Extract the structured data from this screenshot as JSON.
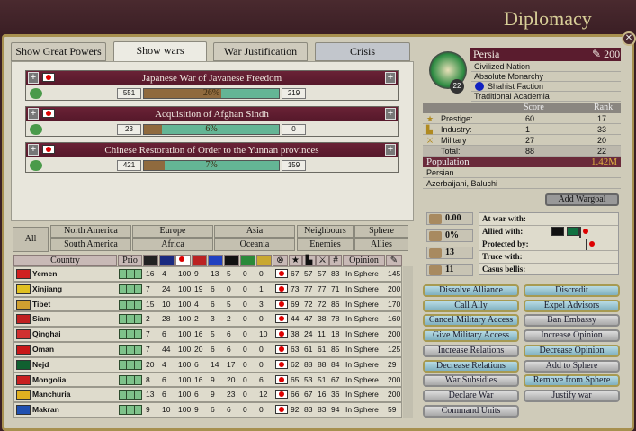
{
  "window": {
    "title": "Diplomacy",
    "close": "✕"
  },
  "tabs": [
    {
      "label": "Show Great Powers"
    },
    {
      "label": "Show wars",
      "active": true
    },
    {
      "label": "War Justification"
    },
    {
      "label": "Crisis"
    }
  ],
  "wars": [
    {
      "name": "Japanese War of Javanese Freedom",
      "attacker_score": "551",
      "defender_score": "219",
      "progress_label": "26%",
      "progress": 26
    },
    {
      "name": "Acquisition of Afghan Sindh",
      "attacker_score": "23",
      "defender_score": "0",
      "progress_label": "6%",
      "progress": 6
    },
    {
      "name": "Chinese Restoration of Order to the Yunnan provinces",
      "attacker_score": "421",
      "defender_score": "159",
      "progress_label": "7%",
      "progress": 7
    }
  ],
  "filters": {
    "all": "All",
    "regions": [
      "North America",
      "South America",
      "Europe",
      "Africa",
      "Asia",
      "Oceania"
    ],
    "groups": [
      "Neighbours",
      "Enemies",
      "Sphere",
      "Allies"
    ]
  },
  "table": {
    "headers": {
      "country": "Country",
      "prio": "Prio",
      "opinion": "Opinion"
    },
    "rows": [
      {
        "country": "Yemen",
        "flag": "#d02020",
        "vals": [
          "16",
          "4",
          "100",
          "9",
          "13",
          "5",
          "0",
          "0"
        ],
        "stats": [
          "67",
          "57",
          "57",
          "83"
        ],
        "opinion": "In Sphere",
        "influence": "145"
      },
      {
        "country": "Xinjiang",
        "flag": "#e0c020",
        "vals": [
          "7",
          "24",
          "100",
          "19",
          "6",
          "0",
          "0",
          "1"
        ],
        "stats": [
          "73",
          "77",
          "77",
          "71"
        ],
        "opinion": "In Sphere",
        "influence": "200"
      },
      {
        "country": "Tibet",
        "flag": "#d0a030",
        "vals": [
          "15",
          "10",
          "100",
          "4",
          "6",
          "5",
          "0",
          "3"
        ],
        "stats": [
          "69",
          "72",
          "72",
          "86"
        ],
        "opinion": "In Sphere",
        "influence": "170"
      },
      {
        "country": "Siam",
        "flag": "#c02020",
        "vals": [
          "2",
          "28",
          "100",
          "2",
          "3",
          "2",
          "0",
          "0"
        ],
        "stats": [
          "44",
          "47",
          "38",
          "78"
        ],
        "opinion": "In Sphere",
        "influence": "160"
      },
      {
        "country": "Qinghai",
        "flag": "#d03030",
        "vals": [
          "7",
          "6",
          "100",
          "16",
          "5",
          "6",
          "0",
          "10"
        ],
        "stats": [
          "38",
          "24",
          "11",
          "18"
        ],
        "opinion": "In Sphere",
        "influence": "200"
      },
      {
        "country": "Oman",
        "flag": "#c81818",
        "vals": [
          "7",
          "44",
          "100",
          "20",
          "6",
          "6",
          "0",
          "0"
        ],
        "stats": [
          "63",
          "61",
          "61",
          "85"
        ],
        "opinion": "In Sphere",
        "influence": "125"
      },
      {
        "country": "Nejd",
        "flag": "#106030",
        "vals": [
          "20",
          "4",
          "100",
          "6",
          "14",
          "17",
          "0",
          "0"
        ],
        "stats": [
          "62",
          "88",
          "88",
          "84"
        ],
        "opinion": "In Sphere",
        "influence": "29"
      },
      {
        "country": "Mongolia",
        "flag": "#c82020",
        "vals": [
          "8",
          "6",
          "100",
          "16",
          "9",
          "20",
          "0",
          "6"
        ],
        "stats": [
          "65",
          "53",
          "51",
          "67"
        ],
        "opinion": "In Sphere",
        "influence": "200"
      },
      {
        "country": "Manchuria",
        "flag": "#e0b020",
        "vals": [
          "13",
          "6",
          "100",
          "6",
          "9",
          "23",
          "0",
          "12"
        ],
        "stats": [
          "66",
          "67",
          "16",
          "36"
        ],
        "opinion": "In Sphere",
        "influence": "200"
      },
      {
        "country": "Makran",
        "flag": "#2050b0",
        "vals": [
          "9",
          "10",
          "100",
          "9",
          "6",
          "6",
          "0",
          "0"
        ],
        "stats": [
          "92",
          "83",
          "83",
          "94"
        ],
        "opinion": "In Sphere",
        "influence": "59"
      }
    ]
  },
  "nation": {
    "name": "Persia",
    "influence": "200",
    "rank_badge": "22",
    "type": "Civilized Nation",
    "government": "Absolute Monarchy",
    "party": "Shahist Faction",
    "party_color": "#1020c0",
    "tech_school": "Traditional Academia",
    "score_header": "Score",
    "rank_header": "Rank",
    "scores": [
      {
        "label": "Prestige:",
        "score": "60",
        "rank": "17"
      },
      {
        "label": "Industry:",
        "score": "1",
        "rank": "33"
      },
      {
        "label": "Military",
        "score": "27",
        "rank": "20"
      },
      {
        "label": "Total:",
        "score": "88",
        "rank": "22"
      }
    ],
    "population_label": "Population",
    "population": "1.42M",
    "primary_culture": "Persian",
    "accepted_cultures": "Azerbaijani, Baluchi"
  },
  "relations": {
    "add_wargoal": "Add Wargoal",
    "stats": [
      "0.00",
      "0%",
      "13",
      "11"
    ],
    "at_war_with": "At war with:",
    "allied_with": "Allied with:",
    "protected_by": "Protected by:",
    "truce_with": "Truce with:",
    "casus_bellis": "Casus bellis:"
  },
  "actions": [
    {
      "label": "Dissolve Alliance",
      "enabled": true
    },
    {
      "label": "Discredit",
      "enabled": true
    },
    {
      "label": "Call Ally",
      "enabled": true
    },
    {
      "label": "Expel Advisors",
      "enabled": true
    },
    {
      "label": "Cancel Military Access",
      "enabled": true
    },
    {
      "label": "Ban Embassy",
      "enabled": false
    },
    {
      "label": "Give Military Access",
      "enabled": true
    },
    {
      "label": "Increase Opinion",
      "enabled": false
    },
    {
      "label": "Increase Relations",
      "enabled": false
    },
    {
      "label": "Decrease Opinion",
      "enabled": true
    },
    {
      "label": "Decrease Relations",
      "enabled": true
    },
    {
      "label": "Add to Sphere",
      "enabled": false
    },
    {
      "label": "War Subsidies",
      "enabled": false
    },
    {
      "label": "Remove from Sphere",
      "enabled": true
    },
    {
      "label": "Declare War",
      "enabled": false
    },
    {
      "label": "Justify war",
      "enabled": false
    },
    {
      "label": "Command Units",
      "enabled": false
    }
  ]
}
